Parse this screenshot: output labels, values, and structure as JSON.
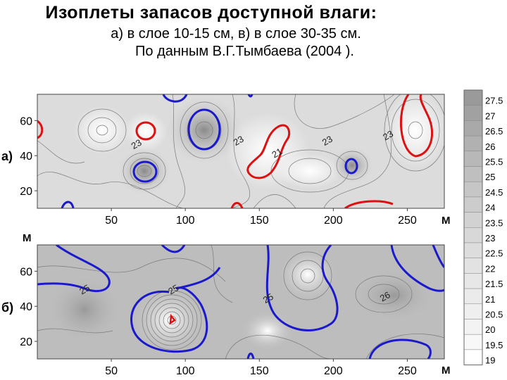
{
  "title": "Изоплеты запасов доступной влаги:",
  "subtitle_line1": "а) в слое 10-15 см, в) в слое 30-35 см.",
  "subtitle_line2": "По данным В.Г.Тымбаева (2004 ).",
  "colors": {
    "highlight_blue": "#1a1acc",
    "highlight_red": "#dd1111",
    "isoline_grey": "#7a7a7a"
  },
  "chart_data": [
    {
      "type": "heatmap",
      "panel_label": "а)",
      "xlabel": "М",
      "xlim": [
        0,
        275
      ],
      "ylim": [
        10,
        75
      ],
      "x_ticks": [
        50,
        100,
        150,
        200,
        250
      ],
      "y_ticks": [
        20,
        40,
        60
      ],
      "isoline_labels": [
        {
          "text": "23",
          "x": 68,
          "y": 45
        },
        {
          "text": "23",
          "x": 137,
          "y": 47
        },
        {
          "text": "21",
          "x": 163,
          "y": 40
        },
        {
          "text": "23",
          "x": 197,
          "y": 47
        },
        {
          "text": "23",
          "x": 238,
          "y": 50
        }
      ],
      "extrema": [
        {
          "x": 115,
          "y": 55,
          "value": 26.5
        },
        {
          "x": 74,
          "y": 31,
          "value": 26
        },
        {
          "x": 258,
          "y": 54,
          "value": 19
        },
        {
          "x": 158,
          "y": 45,
          "value": 19.5
        },
        {
          "x": 73,
          "y": 54,
          "value": 20.5
        }
      ]
    },
    {
      "type": "heatmap",
      "panel_label": "б)",
      "xlabel": "М",
      "ylabel": "М",
      "xlim": [
        0,
        275
      ],
      "ylim": [
        10,
        75
      ],
      "x_ticks": [
        50,
        100,
        150,
        200,
        250
      ],
      "y_ticks": [
        20,
        40,
        60
      ],
      "isoline_labels": [
        {
          "text": "25",
          "x": 33,
          "y": 48
        },
        {
          "text": "25",
          "x": 93,
          "y": 48
        },
        {
          "text": "25",
          "x": 157,
          "y": 43
        },
        {
          "text": "26",
          "x": 236,
          "y": 44
        }
      ],
      "extrema": [
        {
          "x": 91,
          "y": 33,
          "value": 19.5
        },
        {
          "x": 180,
          "y": 58,
          "value": 24
        },
        {
          "x": 30,
          "y": 30,
          "value": 26
        },
        {
          "x": 245,
          "y": 42,
          "value": 26.5
        }
      ]
    },
    {
      "type": "legend",
      "legend_levels": [
        "27.5",
        "27",
        "26.5",
        "26",
        "25.5",
        "25",
        "24.5",
        "24",
        "23.5",
        "23",
        "22.5",
        "22",
        "21.5",
        "21",
        "20.5",
        "20",
        "19.5",
        "19"
      ],
      "legend_colors": [
        "#9a9a9a",
        "#a1a1a1",
        "#a9a9a9",
        "#b1b1b1",
        "#b8b8b8",
        "#bfbfbf",
        "#c6c6c6",
        "#cccccc",
        "#d2d2d2",
        "#d8d8d8",
        "#dddddd",
        "#e2e2e2",
        "#e7e7e7",
        "#ebebeb",
        "#efefef",
        "#f3f3f3",
        "#f8f8f8",
        "#ffffff"
      ]
    }
  ]
}
